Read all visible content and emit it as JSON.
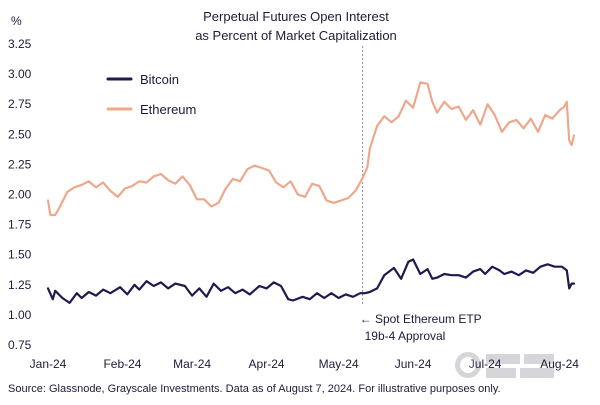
{
  "chart_data": {
    "type": "line",
    "title": "Perpetual Futures Open Interest",
    "subtitle": "as Percent of Market Capitalization",
    "ylabel": "%",
    "xlabel": "",
    "ylim": [
      0.75,
      3.25
    ],
    "y_ticks": [
      "3.25",
      "3.00",
      "2.75",
      "2.50",
      "2.25",
      "2.00",
      "1.75",
      "1.50",
      "1.25",
      "1.00",
      "0.75"
    ],
    "x_ticks": [
      "Jan-24",
      "Feb-24",
      "Mar-24",
      "Apr-24",
      "May-24",
      "Jun-24",
      "Jul-24",
      "Aug-24"
    ],
    "x_tick_values": [
      0,
      31,
      60,
      91,
      121,
      152,
      182,
      213
    ],
    "x_unit": "days since 2024-01-01",
    "x_range": [
      0,
      219
    ],
    "grid": false,
    "legend_position": "top-left",
    "series": [
      {
        "name": "Bitcoin",
        "color": "#24174f",
        "x": [
          0,
          2,
          3,
          6,
          9,
          12,
          14,
          17,
          20,
          23,
          26,
          30,
          33,
          36,
          38,
          41,
          44,
          47,
          50,
          53,
          57,
          60,
          63,
          66,
          69,
          72,
          75,
          78,
          81,
          84,
          88,
          91,
          94,
          97,
          100,
          102,
          106,
          109,
          112,
          115,
          118,
          121,
          124,
          127,
          130,
          132,
          134,
          137,
          140,
          144,
          147,
          150,
          152,
          155,
          158,
          160,
          162,
          165,
          168,
          171,
          174,
          177,
          180,
          182,
          185,
          188,
          190,
          193,
          196,
          199,
          202,
          205,
          208,
          211,
          214,
          216,
          217,
          218,
          219
        ],
        "y": [
          1.22,
          1.13,
          1.2,
          1.14,
          1.1,
          1.18,
          1.14,
          1.19,
          1.16,
          1.21,
          1.18,
          1.23,
          1.17,
          1.25,
          1.21,
          1.28,
          1.24,
          1.27,
          1.22,
          1.26,
          1.24,
          1.16,
          1.22,
          1.15,
          1.26,
          1.2,
          1.23,
          1.18,
          1.21,
          1.17,
          1.24,
          1.22,
          1.27,
          1.24,
          1.13,
          1.12,
          1.15,
          1.13,
          1.18,
          1.14,
          1.18,
          1.14,
          1.17,
          1.15,
          1.18,
          1.18,
          1.19,
          1.22,
          1.33,
          1.39,
          1.3,
          1.44,
          1.46,
          1.34,
          1.38,
          1.3,
          1.31,
          1.34,
          1.33,
          1.33,
          1.31,
          1.36,
          1.38,
          1.34,
          1.4,
          1.37,
          1.34,
          1.36,
          1.33,
          1.37,
          1.35,
          1.4,
          1.42,
          1.4,
          1.4,
          1.37,
          1.22,
          1.26,
          1.26
        ]
      },
      {
        "name": "Ethereum",
        "color": "#eda88b",
        "x": [
          0,
          1,
          3,
          5,
          8,
          11,
          14,
          17,
          20,
          23,
          26,
          29,
          32,
          35,
          38,
          41,
          44,
          47,
          50,
          53,
          56,
          59,
          62,
          65,
          68,
          71,
          74,
          77,
          80,
          83,
          86,
          89,
          92,
          95,
          98,
          101,
          104,
          107,
          110,
          113,
          116,
          119,
          122,
          125,
          128,
          130,
          132,
          133,
          134,
          137,
          140,
          143,
          146,
          149,
          152,
          155,
          158,
          160,
          162,
          165,
          168,
          171,
          174,
          177,
          180,
          183,
          186,
          189,
          192,
          195,
          198,
          201,
          204,
          207,
          210,
          213,
          215,
          216,
          217,
          218,
          219
        ],
        "y": [
          1.95,
          1.83,
          1.83,
          1.9,
          2.02,
          2.06,
          2.08,
          2.11,
          2.06,
          2.1,
          2.03,
          1.98,
          2.05,
          2.07,
          2.11,
          2.1,
          2.15,
          2.17,
          2.12,
          2.09,
          2.15,
          2.08,
          1.96,
          1.96,
          1.9,
          1.93,
          2.05,
          2.13,
          2.11,
          2.21,
          2.24,
          2.22,
          2.2,
          2.1,
          2.06,
          2.11,
          2.0,
          1.98,
          2.09,
          2.07,
          1.95,
          1.93,
          1.95,
          1.97,
          2.03,
          2.1,
          2.18,
          2.23,
          2.38,
          2.57,
          2.65,
          2.6,
          2.65,
          2.78,
          2.72,
          2.93,
          2.92,
          2.77,
          2.68,
          2.77,
          2.71,
          2.73,
          2.62,
          2.7,
          2.58,
          2.75,
          2.66,
          2.52,
          2.6,
          2.62,
          2.55,
          2.63,
          2.52,
          2.66,
          2.63,
          2.7,
          2.73,
          2.77,
          2.45,
          2.41,
          2.49
        ]
      }
    ],
    "annotations": [
      {
        "x": 131,
        "lines": [
          "← Spot Ethereum ETP",
          "19b-4 Approval"
        ],
        "line_style": "dotted",
        "color": "#8a8aa0"
      }
    ],
    "source": "Source: Glassnode, Grayscale Investments. Data as of August 7, 2024. For illustrative purposes only."
  }
}
